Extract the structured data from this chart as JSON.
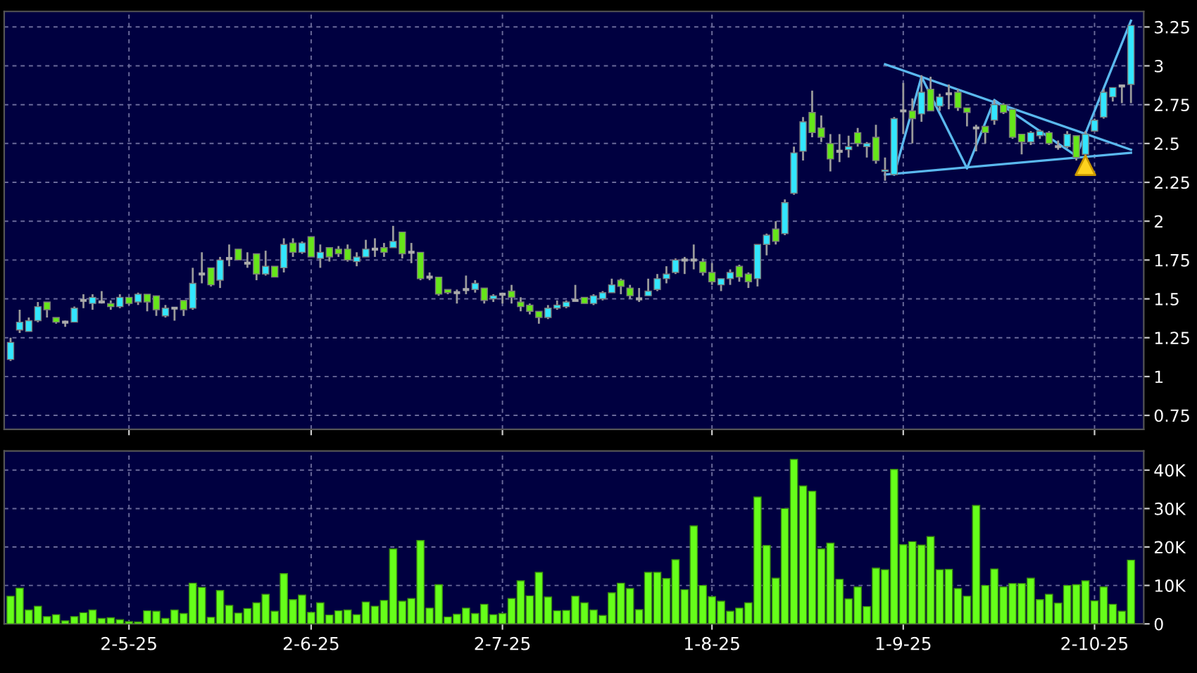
{
  "chart_data": [
    {
      "type": "candlestick",
      "categories": [
        null,
        null,
        null,
        null,
        null,
        null,
        null,
        null,
        null,
        null,
        null,
        null,
        null,
        null,
        null,
        null,
        null,
        null,
        null,
        null,
        null,
        null,
        null,
        null,
        null,
        null,
        null,
        null,
        null,
        null,
        null,
        null,
        null,
        null,
        null,
        null,
        null,
        null,
        null,
        null,
        null,
        null,
        null,
        null,
        null,
        null,
        null,
        null,
        null,
        null,
        null,
        null,
        null,
        null,
        null,
        null,
        null,
        null,
        null,
        null,
        null,
        null,
        null,
        null,
        null,
        null,
        null,
        null,
        null,
        null,
        null,
        null,
        null,
        null,
        null,
        null,
        null,
        null,
        null,
        null,
        null,
        null,
        null,
        null,
        null,
        null,
        null,
        null,
        null,
        null,
        null,
        null,
        null,
        null,
        null,
        null,
        null,
        null,
        null,
        null,
        null,
        null,
        null,
        null,
        null,
        null,
        null,
        null,
        null,
        null,
        null,
        null,
        null,
        null,
        null,
        null,
        null,
        null,
        null,
        null,
        null,
        null,
        null,
        null
      ],
      "ohlc": [
        [
          1.11,
          1.25,
          1.1,
          1.22
        ],
        [
          1.3,
          1.43,
          1.28,
          1.35
        ],
        [
          1.29,
          1.38,
          1.29,
          1.36
        ],
        [
          1.36,
          1.48,
          1.35,
          1.45
        ],
        [
          1.48,
          1.48,
          1.38,
          1.43
        ],
        [
          1.38,
          1.38,
          1.34,
          1.35
        ],
        [
          1.35,
          1.36,
          1.32,
          1.35
        ],
        [
          1.35,
          1.45,
          1.35,
          1.44
        ],
        [
          1.49,
          1.53,
          1.44,
          1.49
        ],
        [
          1.47,
          1.53,
          1.43,
          1.51
        ],
        [
          1.48,
          1.55,
          1.47,
          1.48
        ],
        [
          1.47,
          1.49,
          1.43,
          1.45
        ],
        [
          1.45,
          1.53,
          1.44,
          1.51
        ],
        [
          1.51,
          1.51,
          1.46,
          1.47
        ],
        [
          1.48,
          1.54,
          1.46,
          1.53
        ],
        [
          1.53,
          1.53,
          1.42,
          1.48
        ],
        [
          1.52,
          1.52,
          1.39,
          1.43
        ],
        [
          1.39,
          1.46,
          1.38,
          1.44
        ],
        [
          1.44,
          1.44,
          1.36,
          1.44
        ],
        [
          1.49,
          1.49,
          1.39,
          1.43
        ],
        [
          1.44,
          1.7,
          1.43,
          1.6
        ],
        [
          1.66,
          1.8,
          1.6,
          1.66
        ],
        [
          1.7,
          1.7,
          1.58,
          1.59
        ],
        [
          1.62,
          1.77,
          1.57,
          1.75
        ],
        [
          1.76,
          1.85,
          1.71,
          1.76
        ],
        [
          1.82,
          1.82,
          1.75,
          1.75
        ],
        [
          1.73,
          1.8,
          1.7,
          1.73
        ],
        [
          1.79,
          1.79,
          1.62,
          1.66
        ],
        [
          1.66,
          1.81,
          1.65,
          1.71
        ],
        [
          1.71,
          1.71,
          1.64,
          1.64
        ],
        [
          1.7,
          1.89,
          1.67,
          1.85
        ],
        [
          1.86,
          1.89,
          1.77,
          1.8
        ],
        [
          1.8,
          1.87,
          1.79,
          1.86
        ],
        [
          1.9,
          1.9,
          1.77,
          1.77
        ],
        [
          1.76,
          1.85,
          1.7,
          1.8
        ],
        [
          1.83,
          1.83,
          1.74,
          1.77
        ],
        [
          1.82,
          1.84,
          1.77,
          1.79
        ],
        [
          1.82,
          1.85,
          1.74,
          1.75
        ],
        [
          1.74,
          1.8,
          1.71,
          1.77
        ],
        [
          1.77,
          1.88,
          1.77,
          1.82
        ],
        [
          1.82,
          1.89,
          1.77,
          1.82
        ],
        [
          1.83,
          1.86,
          1.77,
          1.8
        ],
        [
          1.83,
          1.97,
          1.83,
          1.87
        ],
        [
          1.93,
          1.93,
          1.76,
          1.79
        ],
        [
          1.8,
          1.86,
          1.73,
          1.8
        ],
        [
          1.8,
          1.8,
          1.62,
          1.63
        ],
        [
          1.64,
          1.67,
          1.62,
          1.64
        ],
        [
          1.64,
          1.64,
          1.52,
          1.53
        ],
        [
          1.56,
          1.56,
          1.53,
          1.54
        ],
        [
          1.54,
          1.56,
          1.47,
          1.54
        ],
        [
          1.56,
          1.65,
          1.53,
          1.56
        ],
        [
          1.56,
          1.62,
          1.54,
          1.6
        ],
        [
          1.57,
          1.57,
          1.47,
          1.49
        ],
        [
          1.5,
          1.53,
          1.48,
          1.52
        ],
        [
          1.53,
          1.54,
          1.47,
          1.53
        ],
        [
          1.55,
          1.59,
          1.47,
          1.51
        ],
        [
          1.48,
          1.51,
          1.42,
          1.45
        ],
        [
          1.46,
          1.47,
          1.4,
          1.42
        ],
        [
          1.42,
          1.42,
          1.34,
          1.38
        ],
        [
          1.38,
          1.46,
          1.37,
          1.44
        ],
        [
          1.44,
          1.49,
          1.43,
          1.46
        ],
        [
          1.45,
          1.49,
          1.44,
          1.48
        ],
        [
          1.49,
          1.59,
          1.49,
          1.49
        ],
        [
          1.51,
          1.51,
          1.47,
          1.47
        ],
        [
          1.47,
          1.53,
          1.46,
          1.52
        ],
        [
          1.5,
          1.55,
          1.49,
          1.54
        ],
        [
          1.54,
          1.63,
          1.54,
          1.59
        ],
        [
          1.62,
          1.63,
          1.53,
          1.58
        ],
        [
          1.57,
          1.59,
          1.5,
          1.52
        ],
        [
          1.5,
          1.57,
          1.48,
          1.5
        ],
        [
          1.52,
          1.63,
          1.52,
          1.55
        ],
        [
          1.56,
          1.66,
          1.55,
          1.63
        ],
        [
          1.63,
          1.71,
          1.6,
          1.66
        ],
        [
          1.67,
          1.76,
          1.66,
          1.75
        ],
        [
          1.75,
          1.77,
          1.66,
          1.75
        ],
        [
          1.75,
          1.85,
          1.69,
          1.75
        ],
        [
          1.74,
          1.76,
          1.65,
          1.67
        ],
        [
          1.67,
          1.73,
          1.59,
          1.61
        ],
        [
          1.59,
          1.63,
          1.55,
          1.63
        ],
        [
          1.63,
          1.69,
          1.59,
          1.67
        ],
        [
          1.71,
          1.72,
          1.61,
          1.64
        ],
        [
          1.66,
          1.67,
          1.57,
          1.61
        ],
        [
          1.63,
          1.85,
          1.58,
          1.85
        ],
        [
          1.85,
          1.92,
          1.78,
          1.91
        ],
        [
          1.95,
          2.0,
          1.85,
          1.87
        ],
        [
          1.92,
          2.14,
          1.91,
          2.12
        ],
        [
          2.18,
          2.48,
          2.17,
          2.44
        ],
        [
          2.45,
          2.67,
          2.39,
          2.64
        ],
        [
          2.7,
          2.84,
          2.54,
          2.57
        ],
        [
          2.6,
          2.68,
          2.51,
          2.54
        ],
        [
          2.5,
          2.56,
          2.32,
          2.4
        ],
        [
          2.45,
          2.56,
          2.38,
          2.45
        ],
        [
          2.46,
          2.55,
          2.41,
          2.48
        ],
        [
          2.57,
          2.6,
          2.48,
          2.5
        ],
        [
          2.48,
          2.51,
          2.41,
          2.5
        ],
        [
          2.54,
          2.62,
          2.37,
          2.39
        ],
        [
          2.32,
          2.41,
          2.26,
          2.33
        ],
        [
          2.3,
          2.67,
          2.3,
          2.66
        ],
        [
          2.71,
          2.89,
          2.56,
          2.71
        ],
        [
          2.71,
          2.79,
          2.5,
          2.66
        ],
        [
          2.69,
          2.94,
          2.64,
          2.83
        ],
        [
          2.85,
          2.93,
          2.71,
          2.71
        ],
        [
          2.74,
          2.82,
          2.71,
          2.8
        ],
        [
          2.82,
          2.88,
          2.72,
          2.82
        ],
        [
          2.83,
          2.85,
          2.71,
          2.73
        ],
        [
          2.73,
          2.73,
          2.61,
          2.7
        ],
        [
          2.6,
          2.62,
          2.45,
          2.6
        ],
        [
          2.61,
          2.61,
          2.5,
          2.57
        ],
        [
          2.65,
          2.78,
          2.62,
          2.75
        ],
        [
          2.75,
          2.76,
          2.69,
          2.7
        ],
        [
          2.72,
          2.72,
          2.53,
          2.54
        ],
        [
          2.56,
          2.56,
          2.43,
          2.51
        ],
        [
          2.51,
          2.58,
          2.49,
          2.57
        ],
        [
          2.55,
          2.59,
          2.53,
          2.58
        ],
        [
          2.57,
          2.58,
          2.49,
          2.5
        ],
        [
          2.48,
          2.52,
          2.46,
          2.48
        ],
        [
          2.48,
          2.58,
          2.47,
          2.56
        ],
        [
          2.55,
          2.55,
          2.39,
          2.41
        ],
        [
          2.43,
          2.58,
          2.41,
          2.56
        ],
        [
          2.58,
          2.66,
          2.58,
          2.65
        ],
        [
          2.67,
          2.85,
          2.66,
          2.83
        ],
        [
          2.8,
          2.86,
          2.77,
          2.86
        ],
        [
          2.87,
          2.88,
          2.76,
          2.87
        ],
        [
          2.88,
          3.26,
          2.76,
          3.26
        ]
      ],
      "colors": [
        "#33e6ff",
        "#33e6ff",
        "#33e6ff",
        "#33e6ff",
        "#66e61a",
        "#66e61a",
        "#aaaaaa",
        "#33e6ff",
        "#aaaaaa",
        "#33e6ff",
        "#aaaaaa",
        "#66e61a",
        "#33e6ff",
        "#66e61a",
        "#33e6ff",
        "#66e61a",
        "#66e61a",
        "#33e6ff",
        "#aaaaaa",
        "#66e61a",
        "#33e6ff",
        "#aaaaaa",
        "#66e61a",
        "#33e6ff",
        "#aaaaaa",
        "#66e61a",
        "#aaaaaa",
        "#66e61a",
        "#33e6ff",
        "#66e61a",
        "#33e6ff",
        "#66e61a",
        "#33e6ff",
        "#66e61a",
        "#33e6ff",
        "#66e61a",
        "#66e61a",
        "#66e61a",
        "#33e6ff",
        "#33e6ff",
        "#aaaaaa",
        "#66e61a",
        "#33e6ff",
        "#66e61a",
        "#aaaaaa",
        "#66e61a",
        "#aaaaaa",
        "#66e61a",
        "#66e61a",
        "#aaaaaa",
        "#aaaaaa",
        "#33e6ff",
        "#66e61a",
        "#33e6ff",
        "#aaaaaa",
        "#66e61a",
        "#66e61a",
        "#66e61a",
        "#66e61a",
        "#33e6ff",
        "#33e6ff",
        "#33e6ff",
        "#aaaaaa",
        "#66e61a",
        "#33e6ff",
        "#33e6ff",
        "#33e6ff",
        "#66e61a",
        "#66e61a",
        "#aaaaaa",
        "#33e6ff",
        "#33e6ff",
        "#33e6ff",
        "#33e6ff",
        "#aaaaaa",
        "#aaaaaa",
        "#66e61a",
        "#66e61a",
        "#33e6ff",
        "#33e6ff",
        "#66e61a",
        "#66e61a",
        "#33e6ff",
        "#33e6ff",
        "#66e61a",
        "#33e6ff",
        "#33e6ff",
        "#33e6ff",
        "#66e61a",
        "#66e61a",
        "#66e61a",
        "#aaaaaa",
        "#33e6ff",
        "#66e61a",
        "#33e6ff",
        "#66e61a",
        "#33e6ff",
        "#33e6ff",
        "#aaaaaa",
        "#66e61a",
        "#33e6ff",
        "#66e61a",
        "#33e6ff",
        "#aaaaaa",
        "#66e61a",
        "#66e61a",
        "#aaaaaa",
        "#66e61a",
        "#33e6ff",
        "#66e61a",
        "#66e61a",
        "#66e61a",
        "#33e6ff",
        "#33e6ff",
        "#66e61a",
        "#aaaaaa",
        "#33e6ff",
        "#66e61a",
        "#33e6ff",
        "#33e6ff",
        "#33e6ff",
        "#33e6ff",
        "#aaaaaa",
        "#33e6ff"
      ],
      "ylim": [
        0.66,
        3.35
      ],
      "yticks": [
        0.75,
        1,
        1.25,
        1.5,
        1.75,
        2,
        2.25,
        2.5,
        2.75,
        3,
        3.25
      ],
      "grid": true,
      "tick_labels": "y",
      "series": [
        {
          "type": "line",
          "color": "#5ab8ee",
          "values": [
            null,
            null,
            null,
            null,
            null,
            null,
            null,
            null,
            null,
            null,
            null,
            null,
            null,
            null,
            null,
            null,
            null,
            null,
            null,
            null,
            null,
            null,
            null,
            null,
            null,
            null,
            null,
            null,
            null,
            null,
            null,
            null,
            null,
            null,
            null,
            null,
            null,
            null,
            null,
            null,
            null,
            null,
            null,
            null,
            null,
            null,
            null,
            null,
            null,
            null,
            null,
            null,
            null,
            null,
            null,
            null,
            null,
            null,
            null,
            null,
            null,
            null,
            null,
            null,
            null,
            null,
            null,
            null,
            null,
            null,
            null,
            null,
            null,
            null,
            null,
            null,
            null,
            null,
            null,
            null,
            null,
            null,
            null,
            null,
            null,
            null,
            null,
            null,
            null,
            null,
            null,
            null,
            null,
            null,
            null,
            null,
            3.01,
            null,
            null,
            null,
            null,
            null,
            null,
            null,
            null,
            null,
            null,
            null,
            null,
            null,
            null,
            null,
            null,
            null,
            null,
            null,
            null,
            null,
            null,
            null,
            null,
            null,
            null,
            2.46
          ]
        },
        {
          "type": "line",
          "color": "#5ab8ee",
          "values": [
            null,
            null,
            null,
            null,
            null,
            null,
            null,
            null,
            null,
            null,
            null,
            null,
            null,
            null,
            null,
            null,
            null,
            null,
            null,
            null,
            null,
            null,
            null,
            null,
            null,
            null,
            null,
            null,
            null,
            null,
            null,
            null,
            null,
            null,
            null,
            null,
            null,
            null,
            null,
            null,
            null,
            null,
            null,
            null,
            null,
            null,
            null,
            null,
            null,
            null,
            null,
            null,
            null,
            null,
            null,
            null,
            null,
            null,
            null,
            null,
            null,
            null,
            null,
            null,
            null,
            null,
            null,
            null,
            null,
            null,
            null,
            null,
            null,
            null,
            null,
            null,
            null,
            null,
            null,
            null,
            null,
            null,
            null,
            null,
            null,
            null,
            null,
            null,
            null,
            null,
            null,
            null,
            null,
            null,
            null,
            null,
            2.3,
            null,
            null,
            null,
            null,
            null,
            null,
            null,
            null,
            null,
            null,
            null,
            null,
            null,
            null,
            null,
            null,
            null,
            null,
            null,
            null,
            null,
            null,
            null,
            null,
            null,
            null,
            2.44
          ]
        },
        {
          "type": "line",
          "color": "#5ab8ee",
          "values": [
            null,
            null,
            null,
            null,
            null,
            null,
            null,
            null,
            null,
            null,
            null,
            null,
            null,
            null,
            null,
            null,
            null,
            null,
            null,
            null,
            null,
            null,
            null,
            null,
            null,
            null,
            null,
            null,
            null,
            null,
            null,
            null,
            null,
            null,
            null,
            null,
            null,
            null,
            null,
            null,
            null,
            null,
            null,
            null,
            null,
            null,
            null,
            null,
            null,
            null,
            null,
            null,
            null,
            null,
            null,
            null,
            null,
            null,
            null,
            null,
            null,
            null,
            null,
            null,
            null,
            null,
            null,
            null,
            null,
            null,
            null,
            null,
            null,
            null,
            null,
            null,
            null,
            null,
            null,
            null,
            null,
            null,
            null,
            null,
            null,
            null,
            null,
            null,
            null,
            null,
            null,
            null,
            null,
            null,
            null,
            null,
            null,
            2.3,
            null,
            null,
            2.93,
            null,
            null,
            null,
            null,
            2.34,
            null,
            null,
            2.78,
            null,
            null,
            null,
            null,
            null,
            null,
            null,
            null,
            2.42,
            null,
            null,
            null,
            null,
            null,
            3.29
          ]
        },
        {
          "type": "scatter",
          "marker": "triangle",
          "color": "#ffd21e",
          "values": [
            null,
            null,
            null,
            null,
            null,
            null,
            null,
            null,
            null,
            null,
            null,
            null,
            null,
            null,
            null,
            null,
            null,
            null,
            null,
            null,
            null,
            null,
            null,
            null,
            null,
            null,
            null,
            null,
            null,
            null,
            null,
            null,
            null,
            null,
            null,
            null,
            null,
            null,
            null,
            null,
            null,
            null,
            null,
            null,
            null,
            null,
            null,
            null,
            null,
            null,
            null,
            null,
            null,
            null,
            null,
            null,
            null,
            null,
            null,
            null,
            null,
            null,
            null,
            null,
            null,
            null,
            null,
            null,
            null,
            null,
            null,
            null,
            null,
            null,
            null,
            null,
            null,
            null,
            null,
            null,
            null,
            null,
            null,
            null,
            null,
            null,
            null,
            null,
            null,
            null,
            null,
            null,
            null,
            null,
            null,
            null,
            null,
            null,
            null,
            null,
            null,
            null,
            null,
            null,
            null,
            null,
            null,
            null,
            null,
            null,
            null,
            null,
            null,
            null,
            null,
            null,
            null,
            null,
            2.36,
            null,
            null,
            null,
            null,
            null
          ]
        }
      ]
    },
    {
      "type": "bar",
      "categories": [
        null,
        null,
        null,
        null,
        null,
        null,
        null,
        null,
        null,
        null,
        null,
        null,
        null,
        "2-5-25",
        null,
        null,
        null,
        null,
        null,
        null,
        null,
        null,
        null,
        null,
        null,
        null,
        null,
        null,
        null,
        null,
        null,
        null,
        null,
        "2-6-25",
        null,
        null,
        null,
        null,
        null,
        null,
        null,
        null,
        null,
        null,
        null,
        null,
        null,
        null,
        null,
        null,
        null,
        null,
        null,
        null,
        "2-7-25",
        null,
        null,
        null,
        null,
        null,
        null,
        null,
        null,
        null,
        null,
        null,
        null,
        null,
        null,
        null,
        null,
        null,
        null,
        null,
        null,
        null,
        null,
        "1-8-25",
        null,
        null,
        null,
        null,
        null,
        null,
        null,
        null,
        null,
        null,
        null,
        null,
        null,
        null,
        null,
        null,
        null,
        null,
        null,
        null,
        "1-9-25",
        null,
        null,
        null,
        null,
        null,
        null,
        null,
        null,
        null,
        null,
        null,
        null,
        null,
        null,
        null,
        null,
        null,
        null,
        null,
        null,
        "2-10-25",
        null,
        null,
        null,
        null
      ],
      "values": [
        7.2,
        9.3,
        3.6,
        4.6,
        1.9,
        2.4,
        0.8,
        1.9,
        2.9,
        3.6,
        1.4,
        1.6,
        1.1,
        0.6,
        0.5,
        3.4,
        3.3,
        1.4,
        3.6,
        2.7,
        10.6,
        9.5,
        1.7,
        8.7,
        4.8,
        2.8,
        4.0,
        5.5,
        7.7,
        3.3,
        13.1,
        6.3,
        7.5,
        3.0,
        5.5,
        2.3,
        3.4,
        3.6,
        2.4,
        5.7,
        4.6,
        6.1,
        19.5,
        5.9,
        6.6,
        21.7,
        4.1,
        10.2,
        1.8,
        2.5,
        4.1,
        2.7,
        5.1,
        2.4,
        2.7,
        6.6,
        11.2,
        7.3,
        13.4,
        7.0,
        3.4,
        3.5,
        7.2,
        5.5,
        3.6,
        2.2,
        8.1,
        10.6,
        9.2,
        3.7,
        13.4,
        13.4,
        11.8,
        16.7,
        8.9,
        25.5,
        10.0,
        7.1,
        5.9,
        3.3,
        4.1,
        5.5,
        33.0,
        20.4,
        11.9,
        30.0,
        42.8,
        35.9,
        34.5,
        19.5,
        21.0,
        11.6,
        6.5,
        9.6,
        4.5,
        14.5,
        14.1,
        40.2,
        20.6,
        21.4,
        20.5,
        22.7,
        14.1,
        14.2,
        9.2,
        7.2,
        30.8,
        10.0,
        14.3,
        9.6,
        10.5,
        10.5,
        11.9,
        6.3,
        7.7,
        5.4,
        10.0,
        10.2,
        11.2,
        6.0,
        9.6,
        5.1,
        3.3,
        16.6
      ],
      "color": "#66ff1a",
      "ylim": [
        0,
        45
      ],
      "yticks": [
        0,
        {
          "value": 10,
          "label": "10K"
        },
        {
          "value": 20,
          "label": "20K"
        },
        {
          "value": 30,
          "label": "30K"
        },
        {
          "value": 40,
          "label": "40K"
        }
      ],
      "grid": true
    }
  ]
}
